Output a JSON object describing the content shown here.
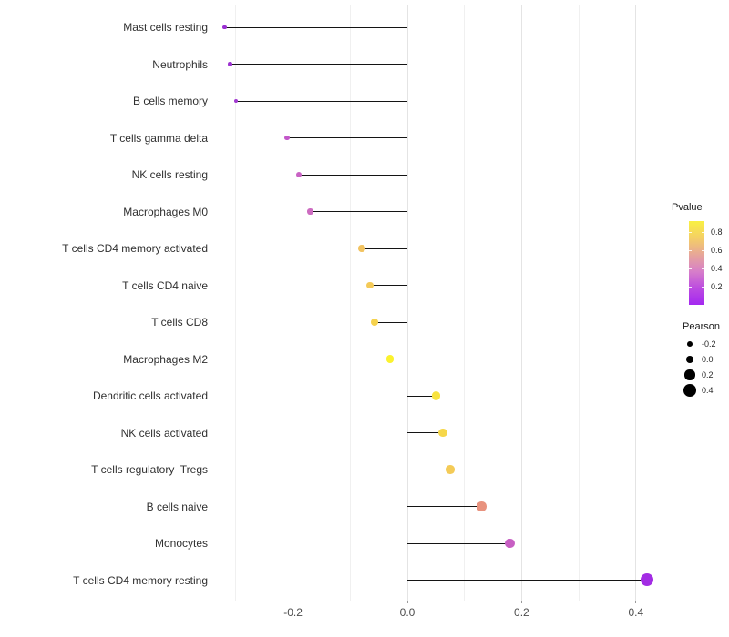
{
  "figure": {
    "background": "#ffffff"
  },
  "chart_data": {
    "type": "scatter",
    "subtype": "lollipop-horizontal",
    "title": "",
    "xlabel": "",
    "ylabel": "",
    "categories": [
      "Mast cells resting",
      "Neutrophils",
      "B cells memory",
      "T cells gamma delta",
      "NK cells resting",
      "Macrophages M0",
      "T cells CD4 memory activated",
      "T cells CD4 naive",
      "T cells CD8",
      "Macrophages M2",
      "Dendritic cells activated",
      "NK cells activated",
      "T cells regulatory  Tregs",
      "B cells naive",
      "Monocytes",
      "T cells CD4 memory resting"
    ],
    "series": [
      {
        "name": "Pearson correlation",
        "values": [
          -0.32,
          -0.31,
          -0.3,
          -0.21,
          -0.19,
          -0.17,
          -0.08,
          -0.065,
          -0.057,
          -0.03,
          0.05,
          0.062,
          0.075,
          0.13,
          0.18,
          0.42
        ]
      }
    ],
    "point_colors": [
      "#9a2fd1",
      "#9d33d1",
      "#a23ad1",
      "#c257c9",
      "#c963c4",
      "#cd6cc1",
      "#f2c360",
      "#f4ca58",
      "#f5d24e",
      "#fbf22e",
      "#f8e340",
      "#f6d74a",
      "#f4cb57",
      "#e8927e",
      "#c75fc3",
      "#a32ce4"
    ],
    "stem_baseline": 0.0,
    "grid": true,
    "x_axis": {
      "major_ticks": [
        -0.2,
        0.0,
        0.2,
        0.4
      ],
      "major_tick_labels": [
        "-0.2",
        "0.0",
        "0.2",
        "0.4"
      ],
      "minor_ticks": [
        -0.3,
        -0.1,
        0.1,
        0.3
      ],
      "xlim": [
        -0.336,
        0.439
      ]
    },
    "legend_pvalue": {
      "title": "Pvalue",
      "tick_labels": [
        "0.8",
        "0.6",
        "0.4",
        "0.2"
      ],
      "tick_values": [
        0.8,
        0.6,
        0.4,
        0.2
      ],
      "bar_domain": [
        0,
        0.93
      ],
      "gradient_top_to_bottom": [
        "#f9f042",
        "#f4cf65",
        "#e7a699",
        "#d77fc9",
        "#bc4be0",
        "#a428f0"
      ]
    },
    "legend_pearson": {
      "title": "Pearson",
      "entries": [
        {
          "label": "-0.2",
          "value": -0.2
        },
        {
          "label": "0.0",
          "value": 0.0
        },
        {
          "label": "0.2",
          "value": 0.2
        },
        {
          "label": "0.4",
          "value": 0.4
        }
      ],
      "dot_color": "#000000"
    }
  }
}
